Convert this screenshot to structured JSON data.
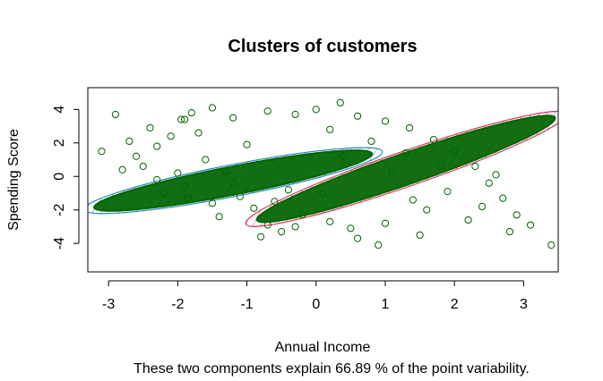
{
  "chart_data": {
    "type": "scatter",
    "title": "Clusters of customers",
    "xlabel": "Annual Income",
    "ylabel": "Spending Score",
    "subtitle": "These two components explain 66.89 % of the point variability.",
    "xlim": [
      -3.3,
      3.5
    ],
    "ylim": [
      -5.7,
      5.3
    ],
    "x_ticks": [
      -3,
      -2,
      -1,
      0,
      1,
      2,
      3
    ],
    "y_ticks": [
      -4,
      -2,
      0,
      2,
      4
    ],
    "x_tick_labels": [
      "-3",
      "-2",
      "-1",
      "0",
      "1",
      "2",
      "3"
    ],
    "y_tick_labels": [
      "-4",
      "-2",
      "0",
      "2",
      "4"
    ],
    "grid": false,
    "point_color": "#006400",
    "point_shape": "open-circle",
    "clusters": [
      {
        "id": 1,
        "color": "#2e8bc0",
        "ellipse": {
          "center": [
            -1.2,
            -0.25
          ],
          "rx": 2.2,
          "ry": 0.95,
          "angle_deg": -11
        },
        "points": [
          [
            -3.1,
            1.5
          ],
          [
            -2.9,
            3.7
          ],
          [
            -2.7,
            2.1
          ],
          [
            -2.5,
            0.6
          ],
          [
            -2.3,
            1.8
          ],
          [
            -2.1,
            2.4
          ],
          [
            -1.95,
            3.4
          ],
          [
            -1.8,
            3.8
          ],
          [
            -1.5,
            4.1
          ],
          [
            -1.6,
            1.0
          ],
          [
            -1.3,
            0.3
          ],
          [
            -1.1,
            -1.2
          ],
          [
            -0.9,
            -1.9
          ],
          [
            -0.7,
            -2.9
          ],
          [
            -0.5,
            -3.3
          ],
          [
            -0.3,
            -3.0
          ],
          [
            -1.9,
            -0.6
          ],
          [
            -2.2,
            -1.0
          ],
          [
            -1.4,
            -2.4
          ],
          [
            -0.8,
            -3.6
          ],
          [
            -2.6,
            1.2
          ],
          [
            -2.0,
            0.2
          ],
          [
            -1.2,
            -0.4
          ],
          [
            -0.6,
            -1.5
          ],
          [
            -0.2,
            -2.3
          ],
          [
            0.2,
            -2.7
          ],
          [
            0.5,
            -3.1
          ],
          [
            -2.4,
            2.9
          ],
          [
            -1.7,
            2.6
          ],
          [
            -1.0,
            1.9
          ],
          [
            -2.8,
            0.4
          ],
          [
            -1.5,
            -1.6
          ],
          [
            -0.4,
            -0.8
          ],
          [
            -2.3,
            -0.2
          ],
          [
            -1.85,
            -1.3
          ]
        ]
      },
      {
        "id": 2,
        "color": "#d6395a",
        "ellipse": {
          "center": [
            1.3,
            0.45
          ],
          "rx": 2.45,
          "ry": 1.05,
          "angle_deg": -19
        },
        "points": [
          [
            -1.9,
            3.4
          ],
          [
            -1.2,
            3.5
          ],
          [
            -0.7,
            3.9
          ],
          [
            -0.3,
            3.7
          ],
          [
            0.0,
            4.0
          ],
          [
            0.35,
            4.4
          ],
          [
            0.6,
            3.6
          ],
          [
            1.0,
            3.3
          ],
          [
            1.35,
            2.9
          ],
          [
            1.7,
            2.2
          ],
          [
            2.0,
            1.5
          ],
          [
            2.3,
            0.6
          ],
          [
            2.5,
            -0.4
          ],
          [
            2.7,
            -1.3
          ],
          [
            2.9,
            -2.3
          ],
          [
            3.1,
            -2.9
          ],
          [
            3.4,
            -4.1
          ],
          [
            2.2,
            -2.6
          ],
          [
            1.6,
            -2.0
          ],
          [
            1.0,
            -2.8
          ],
          [
            0.6,
            -3.7
          ],
          [
            0.9,
            -4.1
          ],
          [
            1.5,
            -3.5
          ],
          [
            0.2,
            2.8
          ],
          [
            0.8,
            2.1
          ],
          [
            1.3,
            1.4
          ],
          [
            1.8,
            0.6
          ],
          [
            2.4,
            -1.8
          ],
          [
            2.6,
            0.1
          ],
          [
            0.4,
            1.2
          ],
          [
            1.1,
            0.3
          ],
          [
            1.9,
            -0.9
          ],
          [
            2.8,
            -3.3
          ],
          [
            1.4,
            -1.4
          ],
          [
            0.1,
            -1.0
          ]
        ]
      }
    ]
  }
}
